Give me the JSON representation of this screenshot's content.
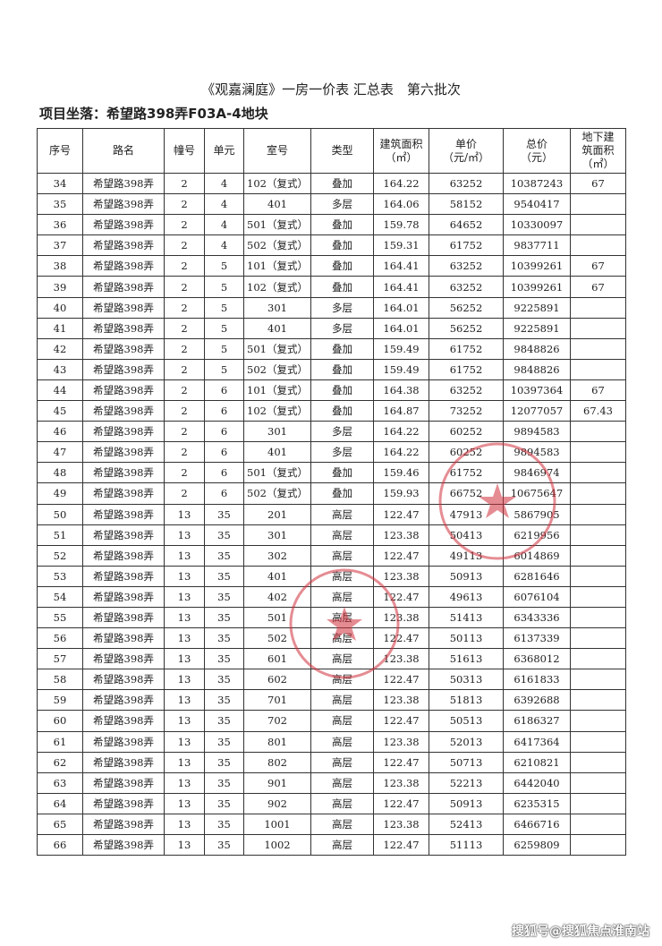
{
  "document": {
    "title": "《观嘉澜庭》一房一价表 汇总表　第六批次",
    "location": "项目坐落：希望路398弄F03A-4地块",
    "watermark": "搜狐号@搜狐焦点淮南站",
    "stamp_color": "#d0303c"
  },
  "table": {
    "headers": [
      "序号",
      "路名",
      "幢号",
      "单元",
      "室号",
      "类型",
      "建筑面积\n（㎡）",
      "单价\n（元/㎡）",
      "总价\n（元）",
      "地下建\n筑面积\n（㎡）"
    ],
    "rows": [
      [
        "34",
        "希望路398弄",
        "2",
        "4",
        "102（复式）",
        "叠加",
        "164.22",
        "63252",
        "10387243",
        "67"
      ],
      [
        "35",
        "希望路398弄",
        "2",
        "4",
        "401",
        "多层",
        "164.06",
        "58152",
        "9540417",
        ""
      ],
      [
        "36",
        "希望路398弄",
        "2",
        "4",
        "501（复式）",
        "叠加",
        "159.78",
        "64652",
        "10330097",
        ""
      ],
      [
        "37",
        "希望路398弄",
        "2",
        "4",
        "502（复式）",
        "叠加",
        "159.31",
        "61752",
        "9837711",
        ""
      ],
      [
        "38",
        "希望路398弄",
        "2",
        "5",
        "101（复式）",
        "叠加",
        "164.41",
        "63252",
        "10399261",
        "67"
      ],
      [
        "39",
        "希望路398弄",
        "2",
        "5",
        "102（复式）",
        "叠加",
        "164.41",
        "63252",
        "10399261",
        "67"
      ],
      [
        "40",
        "希望路398弄",
        "2",
        "5",
        "301",
        "多层",
        "164.01",
        "56252",
        "9225891",
        ""
      ],
      [
        "41",
        "希望路398弄",
        "2",
        "5",
        "401",
        "多层",
        "164.01",
        "56252",
        "9225891",
        ""
      ],
      [
        "42",
        "希望路398弄",
        "2",
        "5",
        "501（复式）",
        "叠加",
        "159.49",
        "61752",
        "9848826",
        ""
      ],
      [
        "43",
        "希望路398弄",
        "2",
        "5",
        "502（复式）",
        "叠加",
        "159.49",
        "61752",
        "9848826",
        ""
      ],
      [
        "44",
        "希望路398弄",
        "2",
        "6",
        "101（复式）",
        "叠加",
        "164.38",
        "63252",
        "10397364",
        "67"
      ],
      [
        "45",
        "希望路398弄",
        "2",
        "6",
        "102（复式）",
        "叠加",
        "164.87",
        "73252",
        "12077057",
        "67.43"
      ],
      [
        "46",
        "希望路398弄",
        "2",
        "6",
        "301",
        "多层",
        "164.22",
        "60252",
        "9894583",
        ""
      ],
      [
        "47",
        "希望路398弄",
        "2",
        "6",
        "401",
        "多层",
        "164.22",
        "60252",
        "9894583",
        ""
      ],
      [
        "48",
        "希望路398弄",
        "2",
        "6",
        "501（复式）",
        "叠加",
        "159.46",
        "61752",
        "9846974",
        ""
      ],
      [
        "49",
        "希望路398弄",
        "2",
        "6",
        "502（复式）",
        "叠加",
        "159.93",
        "66752",
        "10675647",
        ""
      ],
      [
        "50",
        "希望路398弄",
        "13",
        "35",
        "201",
        "高层",
        "122.47",
        "47913",
        "5867905",
        ""
      ],
      [
        "51",
        "希望路398弄",
        "13",
        "35",
        "301",
        "高层",
        "123.38",
        "50413",
        "6219956",
        ""
      ],
      [
        "52",
        "希望路398弄",
        "13",
        "35",
        "302",
        "高层",
        "122.47",
        "49113",
        "6014869",
        ""
      ],
      [
        "53",
        "希望路398弄",
        "13",
        "35",
        "401",
        "高层",
        "123.38",
        "50913",
        "6281646",
        ""
      ],
      [
        "54",
        "希望路398弄",
        "13",
        "35",
        "402",
        "高层",
        "122.47",
        "49613",
        "6076104",
        ""
      ],
      [
        "55",
        "希望路398弄",
        "13",
        "35",
        "501",
        "高层",
        "123.38",
        "51413",
        "6343336",
        ""
      ],
      [
        "56",
        "希望路398弄",
        "13",
        "35",
        "502",
        "高层",
        "122.47",
        "50113",
        "6137339",
        ""
      ],
      [
        "57",
        "希望路398弄",
        "13",
        "35",
        "601",
        "高层",
        "123.38",
        "51613",
        "6368012",
        ""
      ],
      [
        "58",
        "希望路398弄",
        "13",
        "35",
        "602",
        "高层",
        "122.47",
        "50313",
        "6161833",
        ""
      ],
      [
        "59",
        "希望路398弄",
        "13",
        "35",
        "701",
        "高层",
        "123.38",
        "51813",
        "6392688",
        ""
      ],
      [
        "60",
        "希望路398弄",
        "13",
        "35",
        "702",
        "高层",
        "122.47",
        "50513",
        "6186327",
        ""
      ],
      [
        "61",
        "希望路398弄",
        "13",
        "35",
        "801",
        "高层",
        "123.38",
        "52013",
        "6417364",
        ""
      ],
      [
        "62",
        "希望路398弄",
        "13",
        "35",
        "802",
        "高层",
        "122.47",
        "50713",
        "6210821",
        ""
      ],
      [
        "63",
        "希望路398弄",
        "13",
        "35",
        "901",
        "高层",
        "123.38",
        "52213",
        "6442040",
        ""
      ],
      [
        "64",
        "希望路398弄",
        "13",
        "35",
        "902",
        "高层",
        "122.47",
        "50913",
        "6235315",
        ""
      ],
      [
        "65",
        "希望路398弄",
        "13",
        "35",
        "1001",
        "高层",
        "123.38",
        "52413",
        "6466716",
        ""
      ],
      [
        "66",
        "希望路398弄",
        "13",
        "35",
        "1002",
        "高层",
        "122.47",
        "51113",
        "6259809",
        ""
      ]
    ]
  }
}
